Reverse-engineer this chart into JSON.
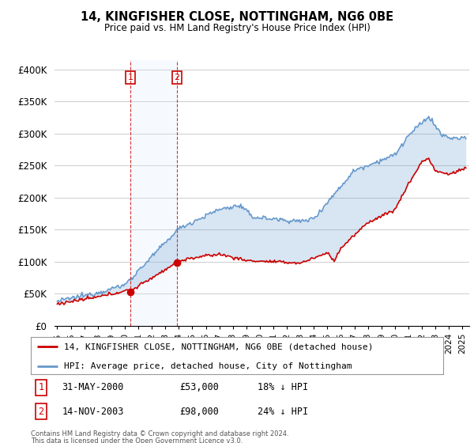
{
  "title": "14, KINGFISHER CLOSE, NOTTINGHAM, NG6 0BE",
  "subtitle": "Price paid vs. HM Land Registry's House Price Index (HPI)",
  "ylabel_ticks": [
    "£0",
    "£50K",
    "£100K",
    "£150K",
    "£200K",
    "£250K",
    "£300K",
    "£350K",
    "£400K"
  ],
  "ytick_values": [
    0,
    50000,
    100000,
    150000,
    200000,
    250000,
    300000,
    350000,
    400000
  ],
  "ylim": [
    0,
    415000
  ],
  "xlim_start": 1994.8,
  "xlim_end": 2025.5,
  "sale1_year": 2000.42,
  "sale1_price": 53000,
  "sale2_year": 2003.87,
  "sale2_price": 98000,
  "annotation1_date": "31-MAY-2000",
  "annotation1_price": "£53,000",
  "annotation1_hpi": "18% ↓ HPI",
  "annotation2_date": "14-NOV-2003",
  "annotation2_price": "£98,000",
  "annotation2_hpi": "24% ↓ HPI",
  "legend_house": "14, KINGFISHER CLOSE, NOTTINGHAM, NG6 0BE (detached house)",
  "legend_hpi": "HPI: Average price, detached house, City of Nottingham",
  "footer1": "Contains HM Land Registry data © Crown copyright and database right 2024.",
  "footer2": "This data is licensed under the Open Government Licence v3.0.",
  "house_color": "#cc0000",
  "hpi_color": "#6699cc",
  "sale_box_color": "#cc0000",
  "background_color": "#ffffff",
  "grid_color": "#cccccc",
  "span_color": "#ddeeff"
}
